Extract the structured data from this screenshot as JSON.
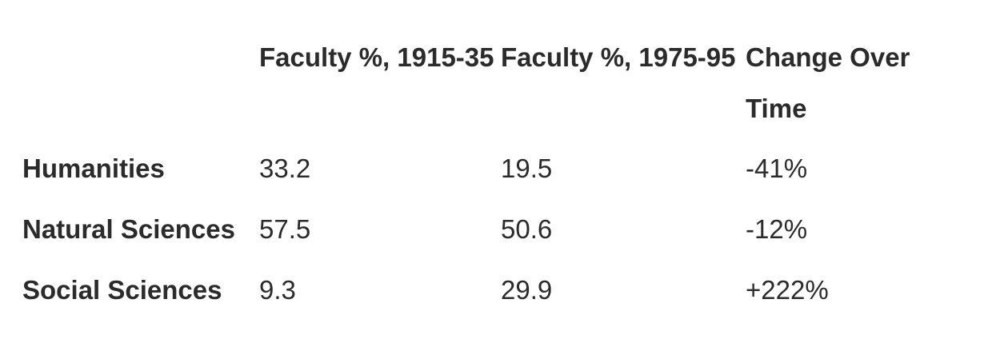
{
  "table": {
    "columns": [
      "",
      "Faculty %, 1915-35",
      "Faculty %, 1975-95",
      "Change Over Time"
    ],
    "rows": [
      {
        "field": "Humanities",
        "early": "33.2",
        "late": "19.5",
        "change": "-41%"
      },
      {
        "field": "Natural Sciences",
        "early": "57.5",
        "late": "50.6",
        "change": "-12%"
      },
      {
        "field": "Social Sciences",
        "early": "9.3",
        "late": "29.9",
        "change": "+222%"
      }
    ]
  }
}
